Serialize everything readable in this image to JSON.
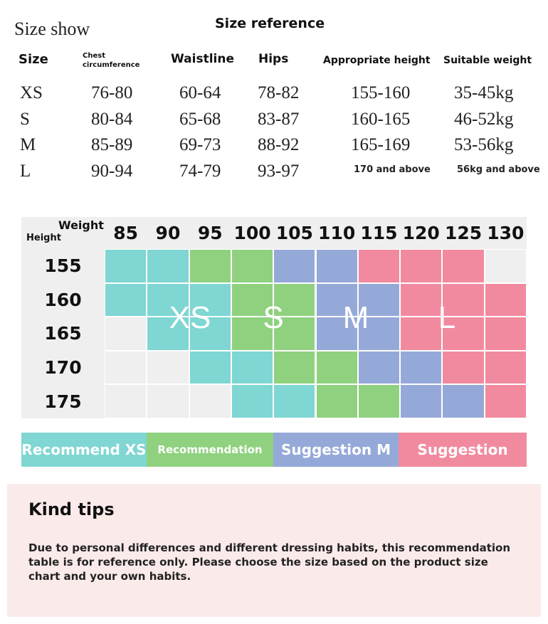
{
  "header": {
    "left_title": "Size show",
    "title": "Size reference"
  },
  "size_table": {
    "columns": [
      "Size",
      "Chest circumference",
      "Waistline",
      "Hips",
      "Appropriate height",
      "Suitable weight"
    ],
    "rows": [
      [
        "XS",
        "76-80",
        "60-64",
        "78-82",
        "155-160",
        "35-45kg"
      ],
      [
        "S",
        "80-84",
        "65-68",
        "83-87",
        "160-165",
        "46-52kg"
      ],
      [
        "M",
        "85-89",
        "69-73",
        "88-92",
        "165-169",
        "53-56kg"
      ],
      [
        "L",
        "90-94",
        "74-79",
        "93-97",
        "170 and above",
        "56kg and above"
      ]
    ]
  },
  "chart": {
    "corner_top": "Weight",
    "corner_bottom": "Height",
    "weights": [
      "85",
      "90",
      "95",
      "100",
      "105",
      "110",
      "115",
      "120",
      "125",
      "130"
    ],
    "heights": [
      "155",
      "160",
      "165",
      "170",
      "175"
    ],
    "cell_colors": [
      [
        "#7fd6d3",
        "#7fd6d3",
        "#8fd17f",
        "#8fd17f",
        "#95a9d8",
        "#95a9d8",
        "#f28a9f",
        "#f28a9f",
        "#f28a9f",
        "#efefef"
      ],
      [
        "#7fd6d3",
        "#7fd6d3",
        "#7fd6d3",
        "#8fd17f",
        "#8fd17f",
        "#95a9d8",
        "#95a9d8",
        "#f28a9f",
        "#f28a9f",
        "#f28a9f"
      ],
      [
        "#efefef",
        "#7fd6d3",
        "#7fd6d3",
        "#8fd17f",
        "#8fd17f",
        "#95a9d8",
        "#95a9d8",
        "#f28a9f",
        "#f28a9f",
        "#f28a9f"
      ],
      [
        "#efefef",
        "#efefef",
        "#7fd6d3",
        "#7fd6d3",
        "#8fd17f",
        "#8fd17f",
        "#95a9d8",
        "#95a9d8",
        "#f28a9f",
        "#f28a9f"
      ],
      [
        "#efefef",
        "#efefef",
        "#efefef",
        "#7fd6d3",
        "#7fd6d3",
        "#8fd17f",
        "#8fd17f",
        "#95a9d8",
        "#95a9d8",
        "#f28a9f"
      ]
    ],
    "size_labels": [
      "XS",
      "S",
      "M",
      "L"
    ]
  },
  "legend": [
    {
      "label": "Recommend XS",
      "color": "#7fd6d3"
    },
    {
      "label": "Recommendation",
      "color": "#8fd17f"
    },
    {
      "label": "Suggestion M",
      "color": "#95a9d8"
    },
    {
      "label": "Suggestion",
      "color": "#f28a9f"
    }
  ],
  "tips": {
    "title": "Kind tips",
    "body": "Due to personal differences and different dressing habits, this recommendation table is for reference only. Please choose the size based on the product size chart and your own habits."
  }
}
